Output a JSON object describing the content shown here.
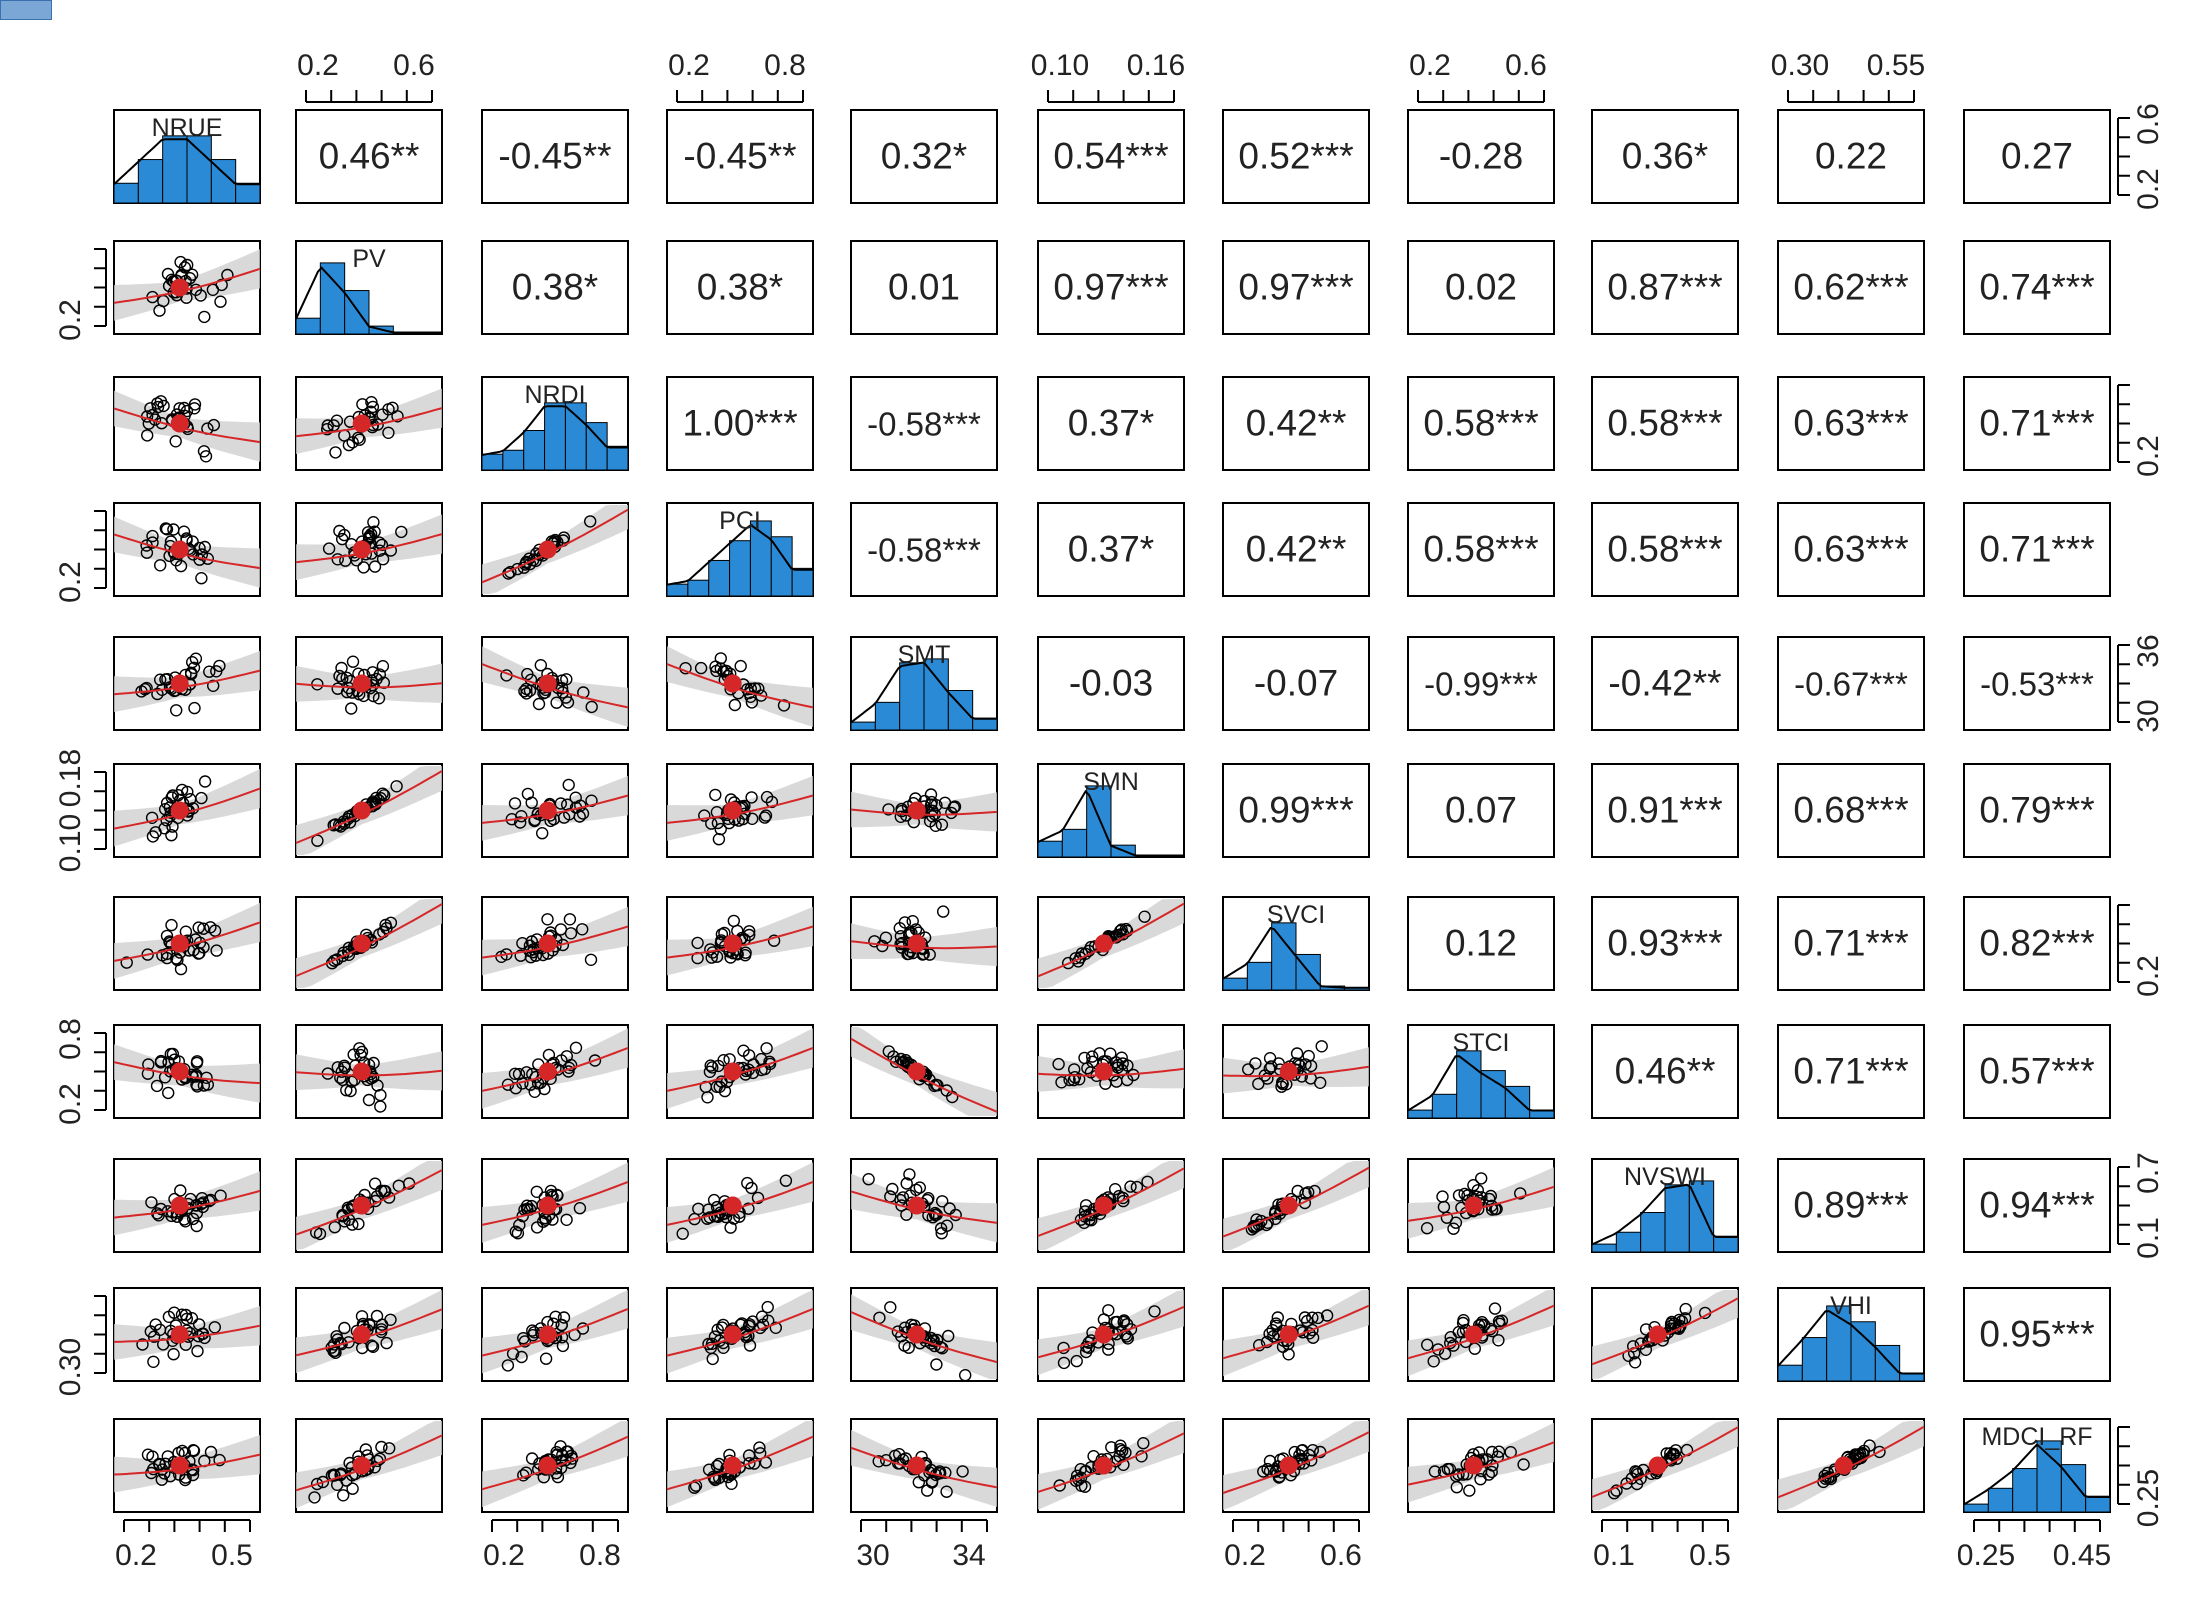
{
  "chart_data": {
    "type": "scatter-matrix",
    "variables": [
      "NRUE",
      "PV",
      "NRDI",
      "PCI",
      "SMT",
      "SMN",
      "SVCI",
      "STCI",
      "NVSWI",
      "VHI",
      "MDCI_RF"
    ],
    "variable_labels": [
      "NRUE",
      "PV",
      "NRDI",
      "PCI",
      "SMT",
      "SMN",
      "SVCI",
      "STCI",
      "NVSWI",
      "VHI",
      "MDCI_RF"
    ],
    "correlations": [
      {
        "row": 0,
        "col": 1,
        "text": "0.46**"
      },
      {
        "row": 0,
        "col": 2,
        "text": "-0.45**"
      },
      {
        "row": 0,
        "col": 3,
        "text": "-0.45**"
      },
      {
        "row": 0,
        "col": 4,
        "text": "0.32*"
      },
      {
        "row": 0,
        "col": 5,
        "text": "0.54***"
      },
      {
        "row": 0,
        "col": 6,
        "text": "0.52***"
      },
      {
        "row": 0,
        "col": 7,
        "text": "-0.28"
      },
      {
        "row": 0,
        "col": 8,
        "text": "0.36*"
      },
      {
        "row": 0,
        "col": 9,
        "text": "0.22"
      },
      {
        "row": 0,
        "col": 10,
        "text": "0.27"
      },
      {
        "row": 1,
        "col": 2,
        "text": "0.38*"
      },
      {
        "row": 1,
        "col": 3,
        "text": "0.38*"
      },
      {
        "row": 1,
        "col": 4,
        "text": "0.01"
      },
      {
        "row": 1,
        "col": 5,
        "text": "0.97***"
      },
      {
        "row": 1,
        "col": 6,
        "text": "0.97***"
      },
      {
        "row": 1,
        "col": 7,
        "text": "0.02"
      },
      {
        "row": 1,
        "col": 8,
        "text": "0.87***"
      },
      {
        "row": 1,
        "col": 9,
        "text": "0.62***"
      },
      {
        "row": 1,
        "col": 10,
        "text": "0.74***"
      },
      {
        "row": 2,
        "col": 3,
        "text": "1.00***"
      },
      {
        "row": 2,
        "col": 4,
        "text": "-0.58***"
      },
      {
        "row": 2,
        "col": 5,
        "text": "0.37*"
      },
      {
        "row": 2,
        "col": 6,
        "text": "0.42**"
      },
      {
        "row": 2,
        "col": 7,
        "text": "0.58***"
      },
      {
        "row": 2,
        "col": 8,
        "text": "0.58***"
      },
      {
        "row": 2,
        "col": 9,
        "text": "0.63***"
      },
      {
        "row": 2,
        "col": 10,
        "text": "0.71***"
      },
      {
        "row": 3,
        "col": 4,
        "text": "-0.58***"
      },
      {
        "row": 3,
        "col": 5,
        "text": "0.37*"
      },
      {
        "row": 3,
        "col": 6,
        "text": "0.42**"
      },
      {
        "row": 3,
        "col": 7,
        "text": "0.58***"
      },
      {
        "row": 3,
        "col": 8,
        "text": "0.58***"
      },
      {
        "row": 3,
        "col": 9,
        "text": "0.63***"
      },
      {
        "row": 3,
        "col": 10,
        "text": "0.71***"
      },
      {
        "row": 4,
        "col": 5,
        "text": "-0.03"
      },
      {
        "row": 4,
        "col": 6,
        "text": "-0.07"
      },
      {
        "row": 4,
        "col": 7,
        "text": "-0.99***"
      },
      {
        "row": 4,
        "col": 8,
        "text": "-0.42**"
      },
      {
        "row": 4,
        "col": 9,
        "text": "-0.67***"
      },
      {
        "row": 4,
        "col": 10,
        "text": "-0.53***"
      },
      {
        "row": 5,
        "col": 6,
        "text": "0.99***"
      },
      {
        "row": 5,
        "col": 7,
        "text": "0.07"
      },
      {
        "row": 5,
        "col": 8,
        "text": "0.91***"
      },
      {
        "row": 5,
        "col": 9,
        "text": "0.68***"
      },
      {
        "row": 5,
        "col": 10,
        "text": "0.79***"
      },
      {
        "row": 6,
        "col": 7,
        "text": "0.12"
      },
      {
        "row": 6,
        "col": 8,
        "text": "0.93***"
      },
      {
        "row": 6,
        "col": 9,
        "text": "0.71***"
      },
      {
        "row": 6,
        "col": 10,
        "text": "0.82***"
      },
      {
        "row": 7,
        "col": 8,
        "text": "0.46**"
      },
      {
        "row": 7,
        "col": 9,
        "text": "0.71***"
      },
      {
        "row": 7,
        "col": 10,
        "text": "0.57***"
      },
      {
        "row": 8,
        "col": 9,
        "text": "0.89***"
      },
      {
        "row": 8,
        "col": 10,
        "text": "0.94***"
      },
      {
        "row": 9,
        "col": 10,
        "text": "0.95***"
      }
    ],
    "top_axis_labels": [
      {
        "col": 1,
        "ticks": [
          "0.2",
          "0.6"
        ]
      },
      {
        "col": 3,
        "ticks": [
          "0.2",
          "0.8"
        ]
      },
      {
        "col": 5,
        "ticks": [
          "0.10",
          "0.16"
        ]
      },
      {
        "col": 7,
        "ticks": [
          "0.2",
          "0.6"
        ]
      },
      {
        "col": 9,
        "ticks": [
          "0.30",
          "0.55"
        ]
      }
    ],
    "bottom_axis_labels": [
      {
        "col": 0,
        "ticks": [
          "0.2",
          "0.5"
        ]
      },
      {
        "col": 2,
        "ticks": [
          "0.2",
          "0.8"
        ]
      },
      {
        "col": 4,
        "ticks": [
          "30",
          "34"
        ]
      },
      {
        "col": 6,
        "ticks": [
          "0.2",
          "0.6"
        ]
      },
      {
        "col": 8,
        "ticks": [
          "0.1",
          "0.5"
        ]
      },
      {
        "col": 10,
        "ticks": [
          "0.25",
          "0.45"
        ]
      }
    ],
    "left_axis_labels": [
      {
        "row": 1,
        "ticks": [
          "0.2"
        ]
      },
      {
        "row": 3,
        "ticks": [
          "0.2"
        ]
      },
      {
        "row": 5,
        "ticks": [
          "0.10",
          "0.18"
        ]
      },
      {
        "row": 7,
        "ticks": [
          "0.2",
          "0.8"
        ]
      },
      {
        "row": 9,
        "ticks": [
          "0.30"
        ]
      }
    ],
    "right_axis_labels": [
      {
        "row": 0,
        "ticks": [
          "0.2",
          "0.6"
        ]
      },
      {
        "row": 2,
        "ticks": [
          "0.2"
        ]
      },
      {
        "row": 4,
        "ticks": [
          "30",
          "36"
        ]
      },
      {
        "row": 6,
        "ticks": [
          "0.2"
        ]
      },
      {
        "row": 8,
        "ticks": [
          "0.1",
          "0.7"
        ]
      },
      {
        "row": 10,
        "ticks": [
          "0.25"
        ]
      }
    ],
    "histogram_color": "#2b8ad6",
    "scatter_fit_color": "#d62728",
    "confidence_band_color": "#d0d0d0"
  }
}
